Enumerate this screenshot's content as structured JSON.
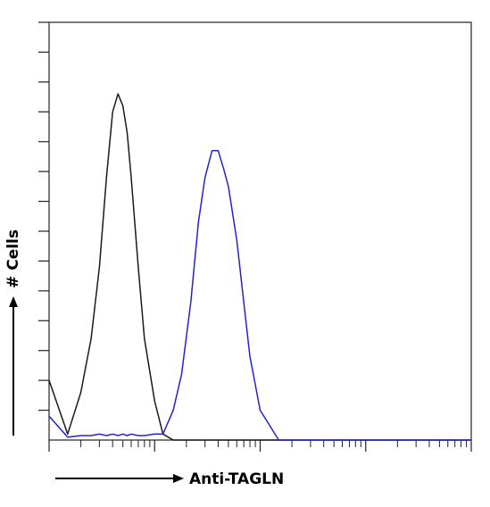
{
  "chart_data": {
    "type": "line",
    "xlabel": "Anti-TAGLN",
    "ylabel": "# Cells",
    "log_x": true,
    "x": [
      1,
      1.5,
      2,
      2.5,
      3,
      3.5,
      4,
      4.5,
      5,
      5.5,
      6,
      7,
      8,
      10,
      12,
      15,
      18,
      22,
      26,
      30,
      35,
      40,
      45,
      50,
      60,
      70,
      80,
      100,
      150,
      1000,
      10000
    ],
    "series": [
      {
        "color": "#1a1a1a",
        "values": [
          20,
          2,
          16,
          34,
          58,
          88,
          110,
          116,
          112,
          103,
          88,
          58,
          34,
          13,
          2,
          0,
          0,
          0,
          0,
          0,
          0,
          0,
          0,
          0,
          0,
          0,
          0,
          0,
          0,
          0,
          0
        ]
      },
      {
        "color": "#2222dd",
        "values": [
          8,
          1,
          1.5,
          1.5,
          2,
          1.5,
          2,
          1.5,
          2,
          1.5,
          2,
          1.5,
          1.5,
          2,
          2,
          10,
          22,
          46,
          73,
          88,
          97,
          97,
          91,
          85,
          67,
          46,
          28,
          10,
          0,
          0,
          0
        ]
      }
    ],
    "xlim": [
      1,
      10000
    ],
    "ylim": [
      0,
      140
    ],
    "xticks": [
      1,
      10,
      100,
      1000,
      10000
    ],
    "xminorticks": [
      2,
      3,
      4,
      5,
      6,
      7,
      8,
      9,
      20,
      30,
      40,
      50,
      60,
      70,
      80,
      90,
      200,
      300,
      400,
      500,
      600,
      700,
      800,
      900,
      2000,
      3000,
      4000,
      5000,
      6000,
      7000,
      8000,
      9000
    ],
    "yticks": [
      10,
      20,
      30,
      40,
      50,
      60,
      70,
      80,
      90,
      100,
      110,
      120,
      130,
      140
    ]
  }
}
